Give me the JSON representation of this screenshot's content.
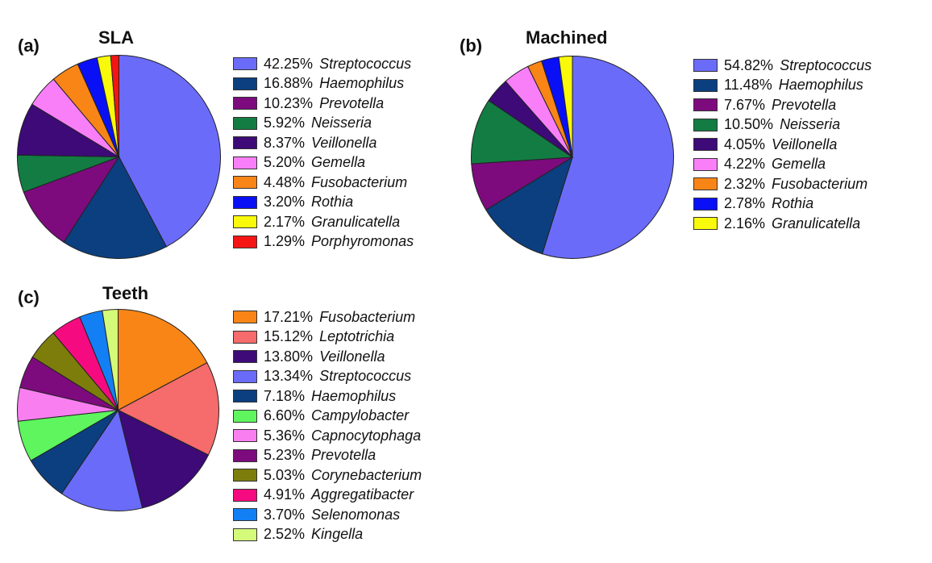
{
  "chart_data": [
    {
      "type": "pie",
      "panel_label": "(a)",
      "title": "SLA",
      "slices": [
        {
          "pct_label": "42.25%",
          "name": "Streptococcus",
          "value": 42.25,
          "color": "#6b6bfa"
        },
        {
          "pct_label": "16.88%",
          "name": "Haemophilus",
          "value": 16.88,
          "color": "#0b3f7f"
        },
        {
          "pct_label": "10.23%",
          "name": "Prevotella",
          "value": 10.23,
          "color": "#7d0b7d"
        },
        {
          "pct_label": "5.92%",
          "name": "Neisseria",
          "value": 5.92,
          "color": "#137c43"
        },
        {
          "pct_label": "8.37%",
          "name": "Veillonella",
          "value": 8.37,
          "color": "#3d0a78"
        },
        {
          "pct_label": "5.20%",
          "name": "Gemella",
          "value": 5.2,
          "color": "#f97ff9"
        },
        {
          "pct_label": "4.48%",
          "name": "Fusobacterium",
          "value": 4.48,
          "color": "#f98517"
        },
        {
          "pct_label": "3.20%",
          "name": "Rothia",
          "value": 3.2,
          "color": "#0a10f5"
        },
        {
          "pct_label": "2.17%",
          "name": "Granulicatella",
          "value": 2.17,
          "color": "#f9f90b"
        },
        {
          "pct_label": "1.29%",
          "name": "Porphyromonas",
          "value": 1.29,
          "color": "#f51515"
        }
      ]
    },
    {
      "type": "pie",
      "panel_label": "(b)",
      "title": "Machined",
      "slices": [
        {
          "pct_label": "54.82%",
          "name": "Streptococcus",
          "value": 54.82,
          "color": "#6b6bfa"
        },
        {
          "pct_label": "11.48%",
          "name": "Haemophilus",
          "value": 11.48,
          "color": "#0b3f7f"
        },
        {
          "pct_label": "7.67%",
          "name": "Prevotella",
          "value": 7.67,
          "color": "#7d0b7d"
        },
        {
          "pct_label": "10.50%",
          "name": "Neisseria",
          "value": 10.5,
          "color": "#137c43"
        },
        {
          "pct_label": "4.05%",
          "name": "Veillonella",
          "value": 4.05,
          "color": "#3d0a78"
        },
        {
          "pct_label": "4.22%",
          "name": "Gemella",
          "value": 4.22,
          "color": "#f97ff9"
        },
        {
          "pct_label": "2.32%",
          "name": "Fusobacterium",
          "value": 2.32,
          "color": "#f98517"
        },
        {
          "pct_label": "2.78%",
          "name": "Rothia",
          "value": 2.78,
          "color": "#0a10f5"
        },
        {
          "pct_label": "2.16%",
          "name": "Granulicatella",
          "value": 2.16,
          "color": "#f9f90b"
        }
      ]
    },
    {
      "type": "pie",
      "panel_label": "(c)",
      "title": "Teeth",
      "slices": [
        {
          "pct_label": "17.21%",
          "name": "Fusobacterium",
          "value": 17.21,
          "color": "#f98517"
        },
        {
          "pct_label": "15.12%",
          "name": "Leptotrichia",
          "value": 15.12,
          "color": "#f66b6b"
        },
        {
          "pct_label": "13.80%",
          "name": "Veillonella",
          "value": 13.8,
          "color": "#3d0a78"
        },
        {
          "pct_label": "13.34%",
          "name": "Streptococcus",
          "value": 13.34,
          "color": "#6b6bfa"
        },
        {
          "pct_label": "7.18%",
          "name": "Haemophilus",
          "value": 7.18,
          "color": "#0b3f7f"
        },
        {
          "pct_label": "6.60%",
          "name": "Campylobacter",
          "value": 6.6,
          "color": "#5ef55e"
        },
        {
          "pct_label": "5.36%",
          "name": "Capnocytophaga",
          "value": 5.36,
          "color": "#f97ff0"
        },
        {
          "pct_label": "5.23%",
          "name": "Prevotella",
          "value": 5.23,
          "color": "#7d0b7d"
        },
        {
          "pct_label": "5.03%",
          "name": "Corynebacterium",
          "value": 5.03,
          "color": "#7d7d0b"
        },
        {
          "pct_label": "4.91%",
          "name": "Aggregatibacter",
          "value": 4.91,
          "color": "#f50b7f"
        },
        {
          "pct_label": "3.70%",
          "name": "Selenomonas",
          "value": 3.7,
          "color": "#137ff5"
        },
        {
          "pct_label": "2.52%",
          "name": "Kingella",
          "value": 2.52,
          "color": "#d4fa7a"
        }
      ]
    }
  ]
}
